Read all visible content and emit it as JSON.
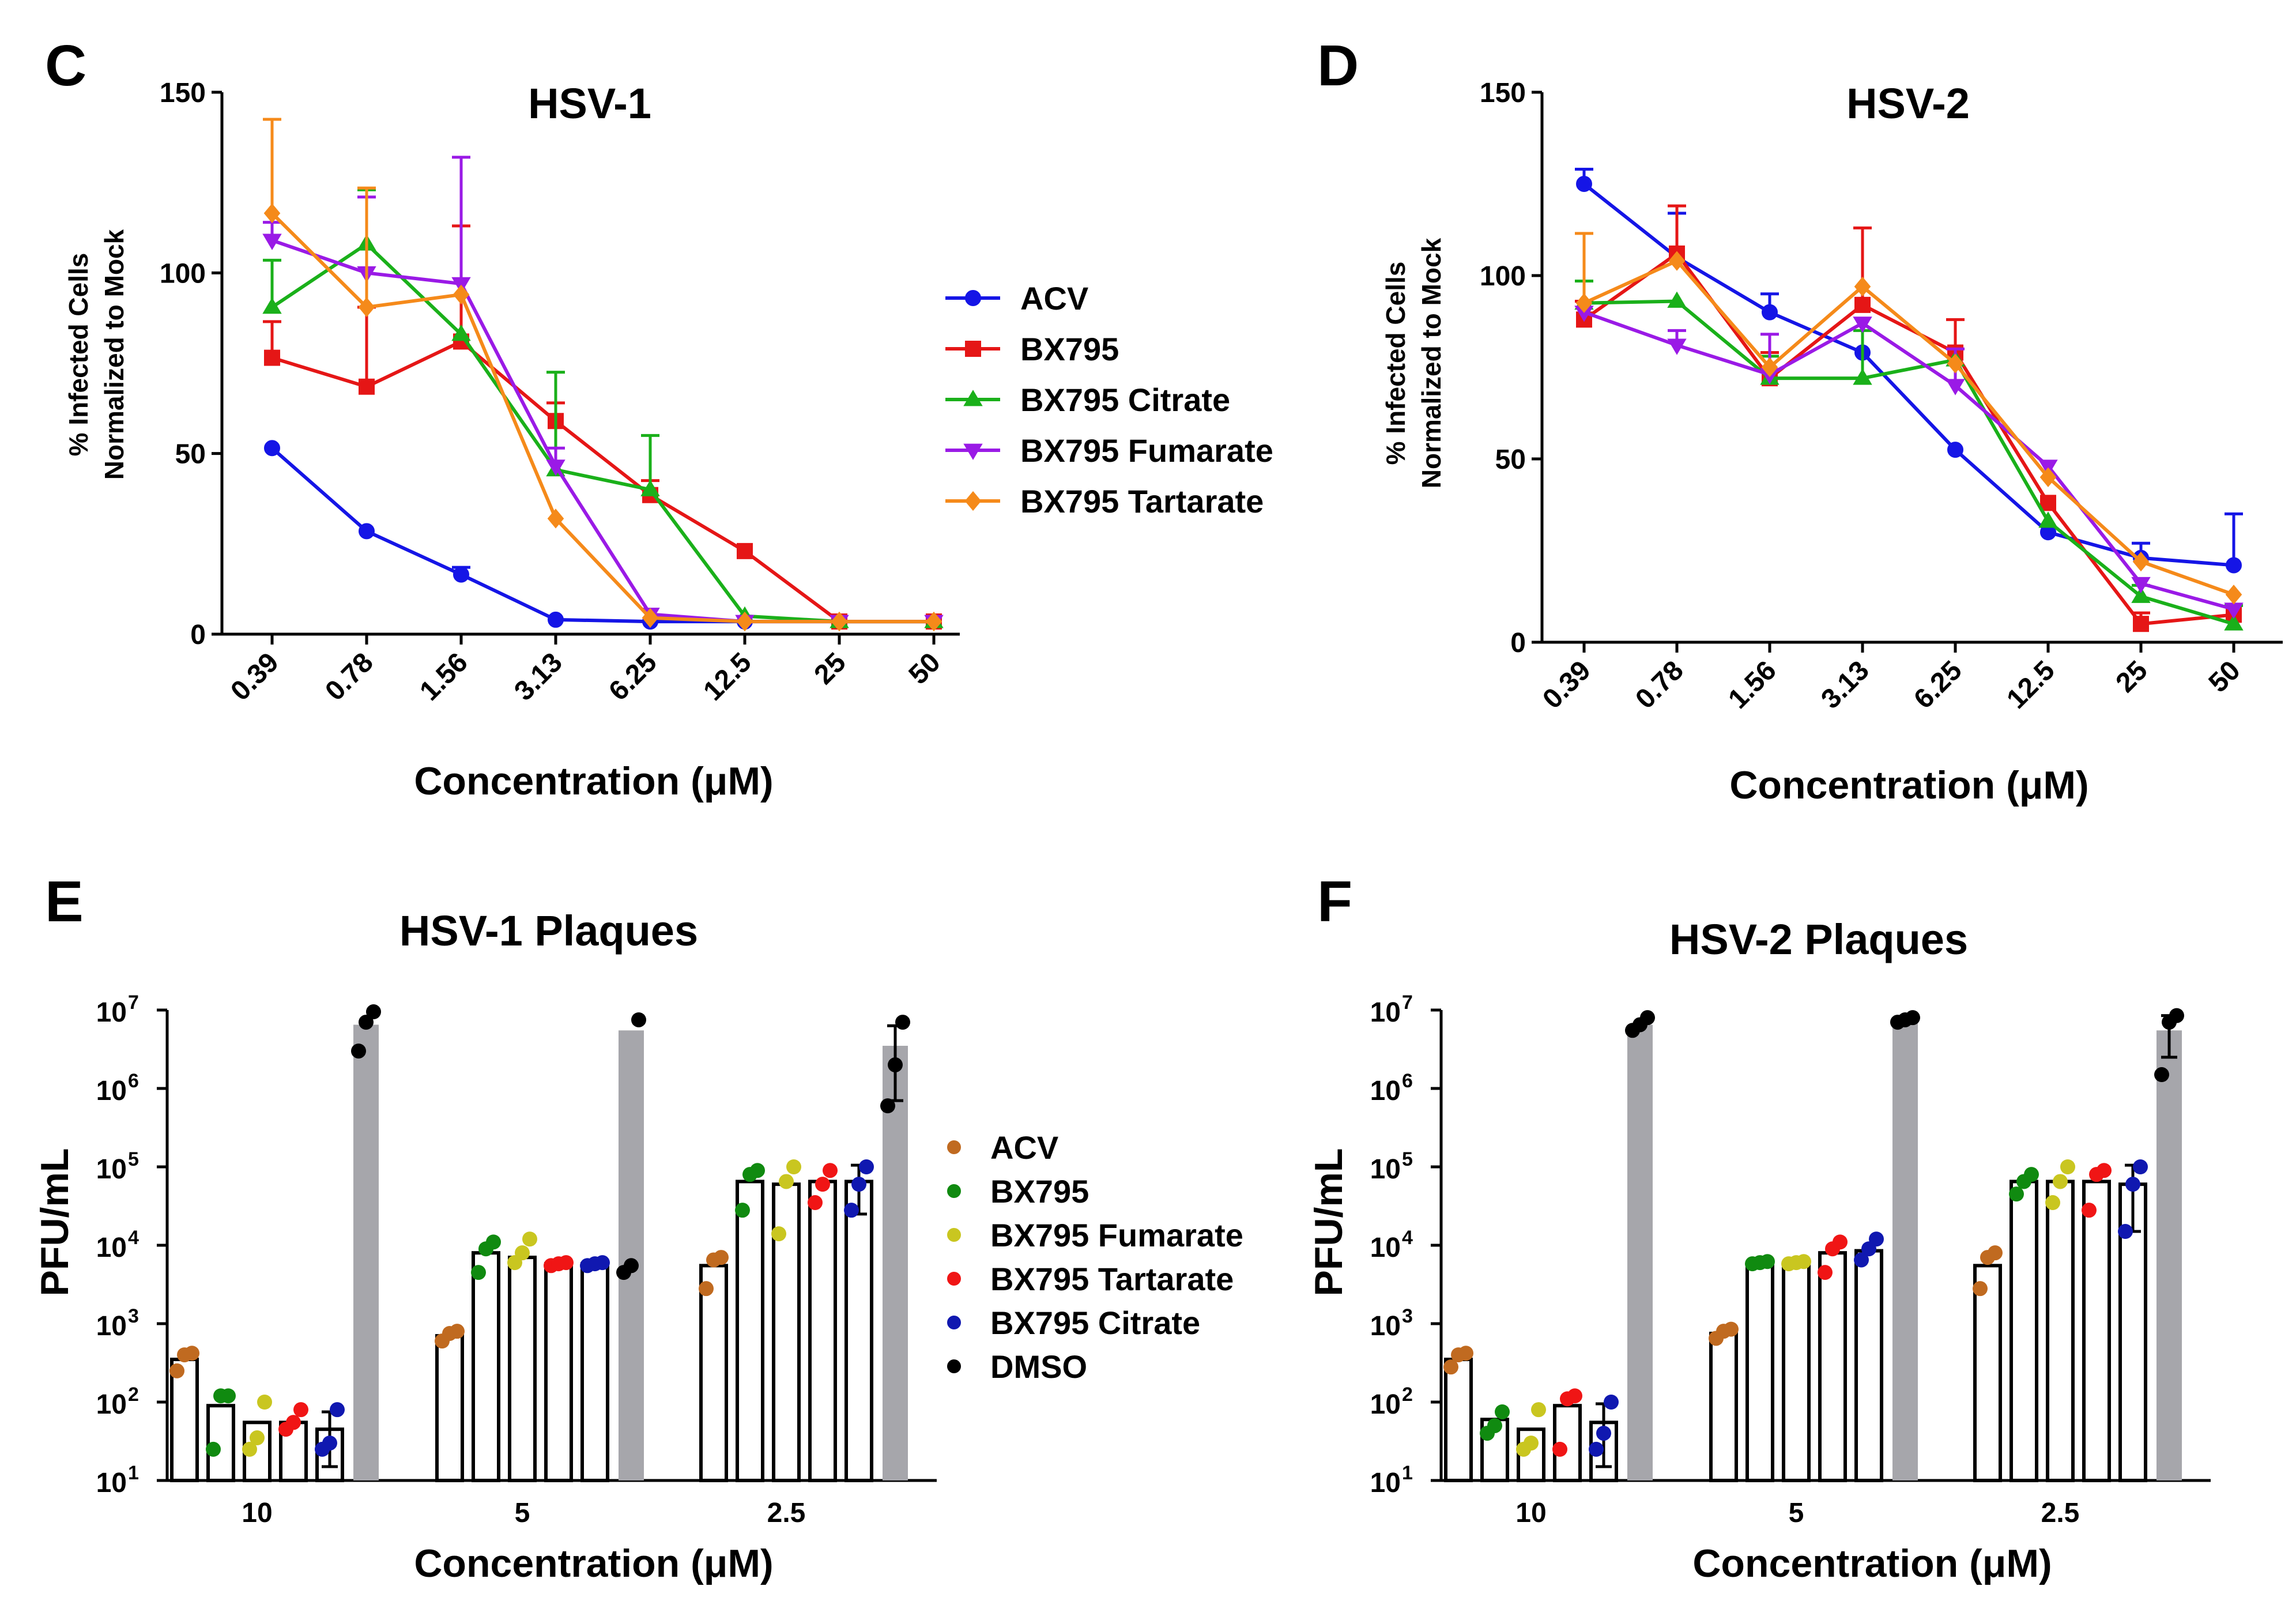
{
  "chart_data": [
    {
      "panel": "C",
      "type": "line",
      "title": "HSV-1",
      "xlabel": "Concentration (μM)",
      "ylabel": [
        "% Infected Cells",
        "Normalized to Mock"
      ],
      "ylim": [
        0,
        150
      ],
      "yticks": [
        "0",
        "50",
        "100",
        "150"
      ],
      "categories": [
        "0.39",
        "0.78",
        "1.56",
        "3.13",
        "6.25",
        "12.5",
        "25",
        "50"
      ],
      "series": [
        {
          "name": "ACV",
          "color": "#1515E6",
          "marker": "circle",
          "values": [
            51.5,
            28.5,
            16.5,
            4,
            3.5,
            3.5,
            3.5,
            3.5
          ],
          "errors": [
            0,
            0,
            2,
            0,
            0,
            0,
            0,
            0
          ]
        },
        {
          "name": "BX795",
          "color": "#E51616",
          "marker": "square",
          "values": [
            76.5,
            68.5,
            81,
            59,
            38.5,
            23,
            3.5,
            3.5
          ],
          "errors": [
            10,
            22,
            32,
            5,
            4,
            0,
            0,
            0
          ]
        },
        {
          "name": "BX795 Citrate",
          "color": "#1AB01A",
          "marker": "triangle-up",
          "values": [
            90.5,
            108,
            83,
            45.5,
            40,
            5,
            3.5,
            3.5
          ],
          "errors": [
            13,
            15,
            0,
            27,
            15,
            0,
            0,
            0
          ]
        },
        {
          "name": "BX795 Fumarate",
          "color": "#9A1AE6",
          "marker": "triangle-down",
          "values": [
            109,
            100,
            97,
            46.5,
            5.5,
            3.5,
            3.5,
            3.5
          ],
          "errors": [
            5,
            21,
            35,
            5,
            0,
            0,
            0,
            0
          ]
        },
        {
          "name": "BX795 Tartarate",
          "color": "#F58A1A",
          "marker": "diamond",
          "values": [
            116.5,
            90.5,
            94,
            32,
            4.5,
            3.5,
            3.5,
            3.5
          ],
          "errors": [
            26,
            33,
            0,
            0,
            0,
            0,
            0,
            0
          ]
        }
      ]
    },
    {
      "panel": "D",
      "type": "line",
      "title": "HSV-2",
      "xlabel": "Concentration (μM)",
      "ylabel": [
        "% Infected Cells",
        "Normalized to Mock"
      ],
      "ylim": [
        0,
        150
      ],
      "yticks": [
        "0",
        "50",
        "100",
        "150"
      ],
      "categories": [
        "0.39",
        "0.78",
        "1.56",
        "3.13",
        "6.25",
        "12.5",
        "25",
        "50"
      ],
      "series": [
        {
          "name": "ACV",
          "color": "#1515E6",
          "marker": "circle",
          "values": [
            125,
            105,
            90,
            79,
            52.5,
            30,
            23,
            21
          ],
          "errors": [
            4,
            12,
            5,
            0,
            0,
            0,
            4,
            14
          ]
        },
        {
          "name": "BX795",
          "color": "#E51616",
          "marker": "square",
          "values": [
            88,
            106,
            72,
            92,
            79,
            38,
            5,
            7.5
          ],
          "errors": [
            5,
            13,
            7,
            21,
            9,
            0,
            3,
            0
          ]
        },
        {
          "name": "BX795 Citrate",
          "color": "#1AB01A",
          "marker": "triangle-up",
          "values": [
            92.5,
            93,
            72,
            72,
            77,
            33,
            12.5,
            5
          ],
          "errors": [
            6,
            0,
            6,
            13,
            0,
            0,
            3,
            5
          ]
        },
        {
          "name": "BX795 Fumarate",
          "color": "#9A1AE6",
          "marker": "triangle-down",
          "values": [
            90,
            81,
            73,
            87,
            70,
            48,
            16,
            9
          ],
          "errors": [
            0,
            4,
            11,
            0,
            10,
            0,
            0,
            0
          ]
        },
        {
          "name": "BX795 Tartarate",
          "color": "#F58A1A",
          "marker": "diamond",
          "values": [
            92.5,
            104,
            75,
            97,
            76,
            45,
            22,
            13
          ],
          "errors": [
            19,
            0,
            0,
            0,
            0,
            0,
            0,
            0
          ]
        }
      ]
    },
    {
      "panel": "E",
      "type": "bar",
      "scale": "log",
      "title": "HSV-1 Plaques",
      "xlabel": "Concentration (μM)",
      "ylabel": "PFU/mL",
      "ylim": [
        10,
        10000000
      ],
      "yticks": [
        {
          "base": "10",
          "exp": "1"
        },
        {
          "base": "10",
          "exp": "2"
        },
        {
          "base": "10",
          "exp": "3"
        },
        {
          "base": "10",
          "exp": "4"
        },
        {
          "base": "10",
          "exp": "5"
        },
        {
          "base": "10",
          "exp": "6"
        },
        {
          "base": "10",
          "exp": "7"
        }
      ],
      "categories": [
        "10",
        "5",
        "2.5"
      ],
      "series_names": [
        "ACV",
        "BX795",
        "BX795 Fumarate",
        "BX795 Tartarate",
        "BX795 Citrate",
        "DMSO"
      ],
      "groups": [
        {
          "values": [
            350,
            90,
            55,
            55,
            45,
            6500000
          ],
          "points": [
            [
              250,
              400,
              420
            ],
            [
              25,
              120,
              120
            ],
            [
              25,
              35,
              100
            ],
            [
              45,
              55,
              80
            ],
            [
              25,
              30,
              80
            ],
            [
              3000000,
              7000000,
              9500000
            ]
          ],
          "errors": [
            0,
            0,
            0,
            0,
            30,
            0
          ]
        },
        {
          "values": [
            700,
            8000,
            7000,
            5800,
            5800,
            5500000
          ],
          "points": [
            [
              600,
              750,
              800
            ],
            [
              4500,
              9000,
              11000
            ],
            [
              6000,
              8000,
              12000
            ],
            [
              5500,
              5800,
              6000
            ],
            [
              5500,
              5800,
              6000
            ],
            [
              4500,
              5500,
              7500000
            ]
          ],
          "errors": [
            0,
            0,
            0,
            0,
            0,
            0
          ]
        },
        {
          "values": [
            5500,
            65000,
            60000,
            65000,
            65000,
            3500000
          ],
          "points": [
            [
              2800,
              6500,
              7000
            ],
            [
              28000,
              80000,
              90000
            ],
            [
              14000,
              65000,
              100000
            ],
            [
              35000,
              60000,
              90000
            ],
            [
              28000,
              60000,
              100000
            ],
            [
              600000,
              2000000,
              7000000
            ]
          ],
          "errors": [
            0,
            0,
            0,
            0,
            40000,
            2800000
          ]
        }
      ]
    },
    {
      "panel": "F",
      "type": "bar",
      "scale": "log",
      "title": "HSV-2 Plaques",
      "xlabel": "Concentration (μM)",
      "ylabel": "PFU/mL",
      "ylim": [
        10,
        10000000
      ],
      "yticks": [
        {
          "base": "10",
          "exp": "1"
        },
        {
          "base": "10",
          "exp": "2"
        },
        {
          "base": "10",
          "exp": "3"
        },
        {
          "base": "10",
          "exp": "4"
        },
        {
          "base": "10",
          "exp": "5"
        },
        {
          "base": "10",
          "exp": "6"
        },
        {
          "base": "10",
          "exp": "7"
        }
      ],
      "categories": [
        "10",
        "5",
        "2.5"
      ],
      "series_names": [
        "ACV",
        "BX795",
        "BX795 Fumarate",
        "BX795 Tartarate",
        "BX795 Citrate",
        "DMSO"
      ],
      "groups": [
        {
          "values": [
            350,
            60,
            45,
            90,
            55,
            6500000
          ],
          "points": [
            [
              280,
              400,
              420
            ],
            [
              40,
              50,
              75
            ],
            [
              25,
              30,
              80
            ],
            [
              25,
              110,
              120
            ],
            [
              25,
              40,
              100
            ],
            [
              5500000,
              6500000,
              8000000
            ]
          ],
          "errors": [
            0,
            0,
            0,
            0,
            40,
            0
          ]
        },
        {
          "values": [
            750,
            6000,
            6000,
            8000,
            8500,
            7500000
          ],
          "points": [
            [
              650,
              800,
              850
            ],
            [
              5800,
              6000,
              6200
            ],
            [
              5800,
              6000,
              6200
            ],
            [
              4500,
              9000,
              11000
            ],
            [
              6500,
              9000,
              12000
            ],
            [
              7000000,
              7500000,
              8000000
            ]
          ],
          "errors": [
            0,
            0,
            0,
            0,
            0,
            0
          ]
        },
        {
          "values": [
            5500,
            65000,
            65000,
            65000,
            60000,
            5500000
          ],
          "points": [
            [
              2800,
              7000,
              8000
            ],
            [
              45000,
              65000,
              80000
            ],
            [
              35000,
              65000,
              100000
            ],
            [
              28000,
              80000,
              90000
            ],
            [
              15000,
              60000,
              100000
            ],
            [
              1500000,
              7000000,
              8500000
            ]
          ],
          "errors": [
            0,
            0,
            0,
            0,
            45000,
            3000000
          ]
        }
      ]
    }
  ],
  "legend_top": [
    {
      "label": "ACV",
      "color": "#1515E6",
      "marker": "circle"
    },
    {
      "label": "BX795",
      "color": "#E51616",
      "marker": "square"
    },
    {
      "label": "BX795 Citrate",
      "color": "#1AB01A",
      "marker": "triangle-up"
    },
    {
      "label": "BX795 Fumarate",
      "color": "#9A1AE6",
      "marker": "triangle-down"
    },
    {
      "label": "BX795 Tartarate",
      "color": "#F58A1A",
      "marker": "diamond"
    }
  ],
  "legend_bottom": [
    {
      "label": "ACV",
      "color": "#C06A20"
    },
    {
      "label": "BX795",
      "color": "#108A10"
    },
    {
      "label": "BX795 Fumarate",
      "color": "#C9C620"
    },
    {
      "label": "BX795 Tartarate",
      "color": "#F01515"
    },
    {
      "label": "BX795 Citrate",
      "color": "#1018B0"
    },
    {
      "label": "DMSO",
      "color": "#000000"
    }
  ],
  "bar_fill_colors": {
    "treatment": "#FFFFFF",
    "control": "#A6A6AB"
  }
}
